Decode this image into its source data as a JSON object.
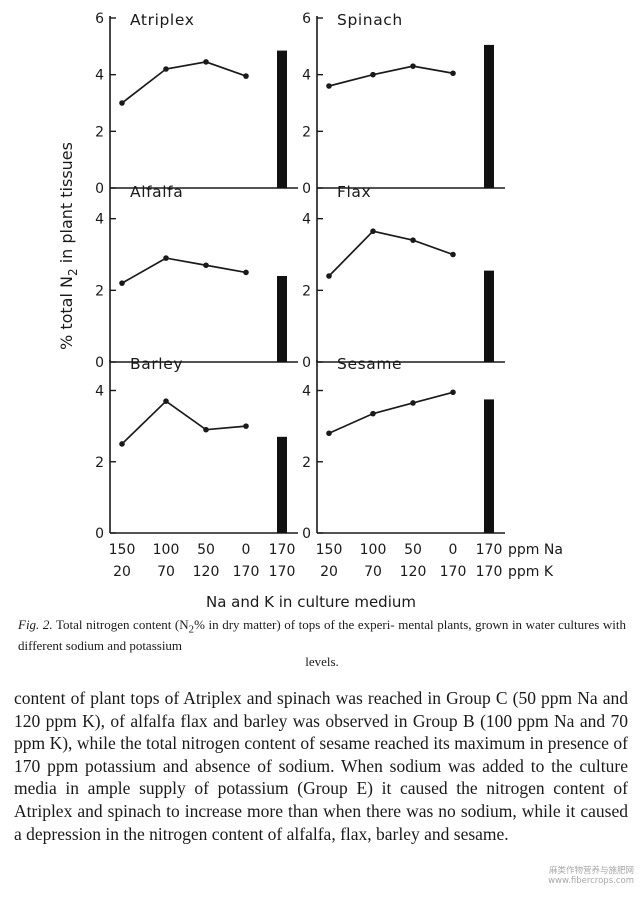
{
  "figure": {
    "y_axis_label": "% total N",
    "y_axis_subscript": "2",
    "y_axis_label_rest": " in plant tissues",
    "x_axis_title": "Na and K in culture medium",
    "na_ticks": [
      "150",
      "100",
      "50",
      "0",
      "170"
    ],
    "k_ticks": [
      "20",
      "70",
      "120",
      "170",
      "170"
    ],
    "na_unit": "ppm Na",
    "k_unit": "ppm K"
  },
  "chart_data": [
    {
      "type": "line",
      "title": "Atriplex",
      "x": [
        "150/20",
        "100/70",
        "50/120",
        "0/170"
      ],
      "values": [
        3.0,
        4.2,
        4.45,
        3.95
      ],
      "bar_label": "170/170",
      "bar_value": 4.85,
      "yticks": [
        "0",
        "2",
        "4",
        "6"
      ],
      "ylim": [
        0,
        6
      ]
    },
    {
      "type": "line",
      "title": "Spinach",
      "x": [
        "150/20",
        "100/70",
        "50/120",
        "0/170"
      ],
      "values": [
        3.6,
        4.0,
        4.3,
        4.05
      ],
      "bar_label": "170/170",
      "bar_value": 5.05,
      "yticks": [
        "0",
        "2",
        "4",
        "6"
      ],
      "ylim": [
        0,
        6
      ]
    },
    {
      "type": "line",
      "title": "Alfalfa",
      "x": [
        "150/20",
        "100/70",
        "50/120",
        "0/170"
      ],
      "values": [
        2.2,
        2.9,
        2.7,
        2.5
      ],
      "bar_label": "170/170",
      "bar_value": 2.4,
      "yticks": [
        "0",
        "2",
        "4"
      ],
      "ylim": [
        0,
        4.8
      ]
    },
    {
      "type": "line",
      "title": "Flax",
      "x": [
        "150/20",
        "100/70",
        "50/120",
        "0/170"
      ],
      "values": [
        2.4,
        3.65,
        3.4,
        3.0
      ],
      "bar_label": "170/170",
      "bar_value": 2.55,
      "yticks": [
        "0",
        "2",
        "4"
      ],
      "ylim": [
        0,
        4.8
      ]
    },
    {
      "type": "line",
      "title": "Barley",
      "x": [
        "150/20",
        "100/70",
        "50/120",
        "0/170"
      ],
      "values": [
        2.5,
        3.7,
        2.9,
        3.0
      ],
      "bar_label": "170/170",
      "bar_value": 2.7,
      "yticks": [
        "0",
        "2",
        "4"
      ],
      "ylim": [
        0,
        4.8
      ]
    },
    {
      "type": "line",
      "title": "Sesame",
      "x": [
        "150/20",
        "100/70",
        "50/120",
        "0/170"
      ],
      "values": [
        2.8,
        3.35,
        3.65,
        3.95
      ],
      "bar_label": "170/170",
      "bar_value": 3.75,
      "yticks": [
        "0",
        "2",
        "4"
      ],
      "ylim": [
        0,
        4.8
      ]
    }
  ],
  "caption": {
    "fig_no": "Fig. 2.",
    "text_1": " Total nitrogen content (N",
    "sub": "2",
    "text_2": "% in dry matter) of tops of the experi- mental plants, grown in water cultures with different sodium and potassium",
    "text_last": "levels."
  },
  "body_text": "content of plant tops of Atriplex and spinach was reached in Group C (50 ppm Na and 120 ppm K), of alfalfa flax and barley was observed in Group B (100 ppm Na and 70 ppm K), while the total nitrogen content of sesame reached its maximum in presence of 170 ppm potassium and absence of sodium. When sodium was added to the culture media in ample supply of potassium (Group E) it caused the nitrogen content of Atriplex and spinach to increase more than when there was no sodium, while it caused a depression in the nitrogen content of alfalfa, flax, barley and sesame.",
  "watermark": {
    "line1": "麻类作物营养与施肥网",
    "line2": "www.fibercrops.com"
  }
}
